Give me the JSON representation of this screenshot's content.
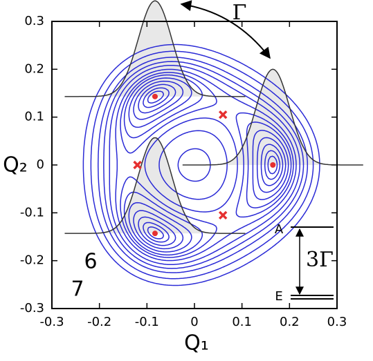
{
  "chart_data": {
    "type": "contour",
    "x_label": "Q₁",
    "y_label": "Q₂",
    "xlim": [
      -0.3,
      0.3
    ],
    "ylim": [
      -0.3,
      0.3
    ],
    "xticks": [
      -0.3,
      -0.2,
      -0.1,
      0,
      0.1,
      0.2,
      0.3
    ],
    "yticks": [
      -0.3,
      -0.2,
      -0.1,
      0,
      0.1,
      0.2,
      0.3
    ],
    "contour_levels": [
      -0.27,
      -0.24,
      -0.19,
      -0.12,
      -0.03,
      0.08,
      0.19,
      0.35,
      0.6,
      0.9,
      1.3,
      2.0,
      3.0
    ],
    "contour_color": "#2a2ad6",
    "contour_labels": [
      "6",
      "7"
    ],
    "minima": {
      "x": [
        -0.083,
        0.165,
        -0.083
      ],
      "y": [
        0.143,
        0,
        -0.143
      ],
      "color": "#e53030"
    },
    "saddles": {
      "x": [
        0.06,
        -0.12,
        0.06
      ],
      "y": [
        0.105,
        0,
        -0.105
      ],
      "color": "#e53030"
    },
    "wavepacket": {
      "height": 0.2,
      "width": 0.035
    },
    "annotations": {
      "tunneling": "Γ",
      "splitting": "3Γ",
      "upper_level": "A",
      "lower_level": "E"
    }
  }
}
